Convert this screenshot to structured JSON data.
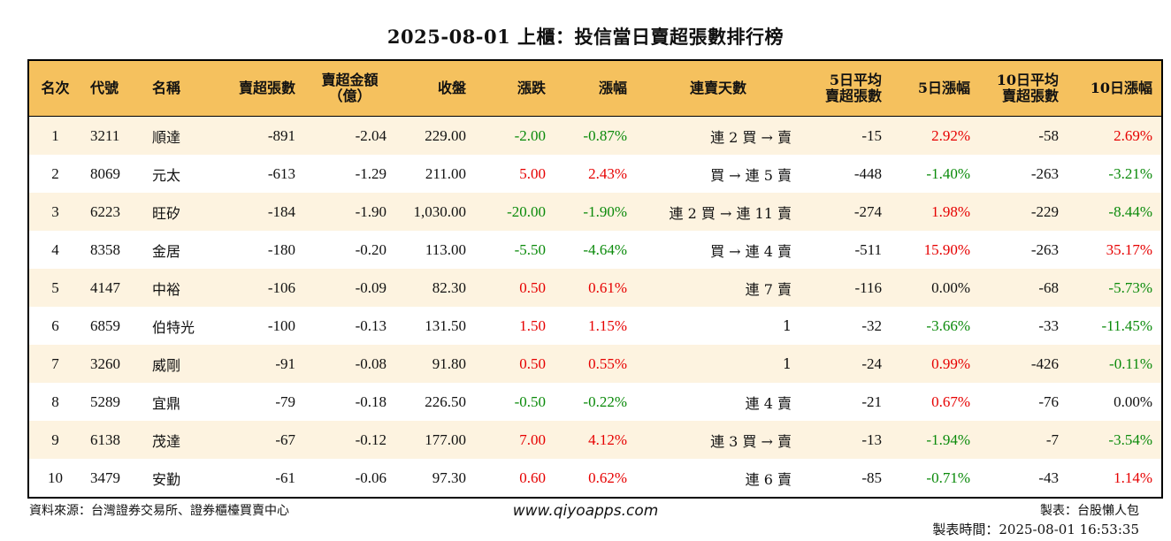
{
  "title": "2025-08-01 上櫃：投信當日賣超張數排行榜",
  "headers": [
    "名次",
    "代號",
    "名稱",
    "賣超張數",
    "賣超金額\n（億）",
    "收盤",
    "漲跌",
    "漲幅",
    "連賣天數",
    "5日平均\n賣超張數",
    "5日漲幅",
    "10日平均\n賣超張數",
    "10日漲幅"
  ],
  "colors": {
    "header_bg": "#f5c15e",
    "row_alt": "#fdf3e0",
    "up": "#e60000",
    "down": "#0a8a0a"
  },
  "rows": [
    {
      "rank": "1",
      "code": "3211",
      "name": "順達",
      "sell_lots": "-891",
      "sell_amt": "-2.04",
      "close": "229.00",
      "change": "-2.00",
      "pct": "-0.87%",
      "streak": "連 2 買 → 賣",
      "avg5": "-15",
      "pct5": "2.92%",
      "avg10": "-58",
      "pct10": "2.69%"
    },
    {
      "rank": "2",
      "code": "8069",
      "name": "元太",
      "sell_lots": "-613",
      "sell_amt": "-1.29",
      "close": "211.00",
      "change": "5.00",
      "pct": "2.43%",
      "streak": "買 → 連 5 賣",
      "avg5": "-448",
      "pct5": "-1.40%",
      "avg10": "-263",
      "pct10": "-3.21%"
    },
    {
      "rank": "3",
      "code": "6223",
      "name": "旺矽",
      "sell_lots": "-184",
      "sell_amt": "-1.90",
      "close": "1,030.00",
      "change": "-20.00",
      "pct": "-1.90%",
      "streak": "連 2 買 → 連 11 賣",
      "avg5": "-274",
      "pct5": "1.98%",
      "avg10": "-229",
      "pct10": "-8.44%"
    },
    {
      "rank": "4",
      "code": "8358",
      "name": "金居",
      "sell_lots": "-180",
      "sell_amt": "-0.20",
      "close": "113.00",
      "change": "-5.50",
      "pct": "-4.64%",
      "streak": "買 → 連 4 賣",
      "avg5": "-511",
      "pct5": "15.90%",
      "avg10": "-263",
      "pct10": "35.17%"
    },
    {
      "rank": "5",
      "code": "4147",
      "name": "中裕",
      "sell_lots": "-106",
      "sell_amt": "-0.09",
      "close": "82.30",
      "change": "0.50",
      "pct": "0.61%",
      "streak": "連 7 賣",
      "avg5": "-116",
      "pct5": "0.00%",
      "avg10": "-68",
      "pct10": "-5.73%"
    },
    {
      "rank": "6",
      "code": "6859",
      "name": "伯特光",
      "sell_lots": "-100",
      "sell_amt": "-0.13",
      "close": "131.50",
      "change": "1.50",
      "pct": "1.15%",
      "streak": "1",
      "avg5": "-32",
      "pct5": "-3.66%",
      "avg10": "-33",
      "pct10": "-11.45%"
    },
    {
      "rank": "7",
      "code": "3260",
      "name": "威剛",
      "sell_lots": "-91",
      "sell_amt": "-0.08",
      "close": "91.80",
      "change": "0.50",
      "pct": "0.55%",
      "streak": "1",
      "avg5": "-24",
      "pct5": "0.99%",
      "avg10": "-426",
      "pct10": "-0.11%"
    },
    {
      "rank": "8",
      "code": "5289",
      "name": "宜鼎",
      "sell_lots": "-79",
      "sell_amt": "-0.18",
      "close": "226.50",
      "change": "-0.50",
      "pct": "-0.22%",
      "streak": "連 4 賣",
      "avg5": "-21",
      "pct5": "0.67%",
      "avg10": "-76",
      "pct10": "0.00%"
    },
    {
      "rank": "9",
      "code": "6138",
      "name": "茂達",
      "sell_lots": "-67",
      "sell_amt": "-0.12",
      "close": "177.00",
      "change": "7.00",
      "pct": "4.12%",
      "streak": "連 3 買 → 賣",
      "avg5": "-13",
      "pct5": "-1.94%",
      "avg10": "-7",
      "pct10": "-3.54%"
    },
    {
      "rank": "10",
      "code": "3479",
      "name": "安勤",
      "sell_lots": "-61",
      "sell_amt": "-0.06",
      "close": "97.30",
      "change": "0.60",
      "pct": "0.62%",
      "streak": "連 6 賣",
      "avg5": "-85",
      "pct5": "-0.71%",
      "avg10": "-43",
      "pct10": "1.14%"
    }
  ],
  "footer": {
    "source": "資料來源：台灣證券交易所、證券櫃檯買賣中心",
    "site": "www.qiyoapps.com",
    "maker": "製表：台股懶人包",
    "made_time": "製表時間：2025-08-01 16:53:35"
  }
}
